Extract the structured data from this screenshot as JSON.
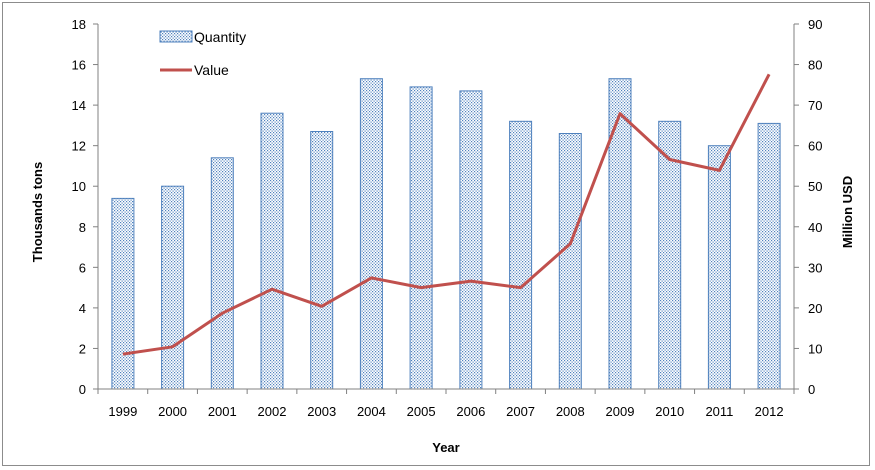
{
  "chart_data": {
    "type": "bar",
    "title": "",
    "xlabel": "Year",
    "ylabel": "Thousands tons",
    "y2label": "Million USD",
    "categories": [
      "1999",
      "2000",
      "2001",
      "2002",
      "2003",
      "2004",
      "2005",
      "2006",
      "2007",
      "2008",
      "2009",
      "2010",
      "2011",
      "2012"
    ],
    "ylim": [
      0,
      18
    ],
    "y2lim": [
      0,
      90
    ],
    "yticks": [
      0,
      2,
      4,
      6,
      8,
      10,
      12,
      14,
      16,
      18
    ],
    "y2ticks": [
      0,
      10,
      20,
      30,
      40,
      50,
      60,
      70,
      80,
      90
    ],
    "legend_position": "top-left",
    "grid": false,
    "series": [
      {
        "name": "Quantity",
        "type": "bar",
        "axis": "left",
        "color": "#4f81bd",
        "values": [
          9.4,
          10.0,
          11.4,
          13.6,
          12.7,
          15.3,
          14.9,
          14.7,
          13.2,
          12.6,
          15.3,
          13.2,
          12.0,
          13.1
        ]
      },
      {
        "name": "Value",
        "type": "line",
        "axis": "right",
        "color": "#c0504d",
        "values": [
          8.6,
          10.4,
          18.7,
          24.6,
          20.4,
          27.4,
          25.0,
          26.6,
          25.0,
          35.8,
          67.9,
          56.6,
          53.9,
          77.6
        ]
      }
    ]
  }
}
